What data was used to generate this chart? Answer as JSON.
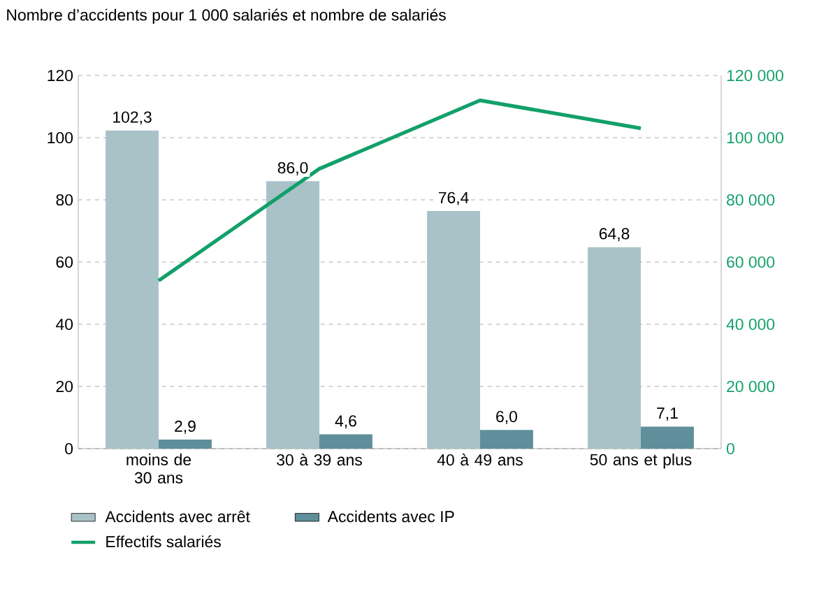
{
  "chart_data": {
    "type": "bar",
    "title": "Nombre d’accidents pour 1 000 salariés et nombre de salariés",
    "categories": [
      "moins de 30 ans",
      "30 à 39 ans",
      "40 à 49 ans",
      "50 ans et plus"
    ],
    "series": [
      {
        "name": "Accidents avec arrêt",
        "color": "#a8c2c8",
        "values": [
          102.3,
          86.0,
          76.4,
          64.8
        ],
        "value_labels": [
          "102,3",
          "86,0",
          "76,4",
          "64,8"
        ]
      },
      {
        "name": "Accidents avec IP",
        "color": "#5f8f9a",
        "values": [
          2.9,
          4.6,
          6.0,
          7.1
        ],
        "value_labels": [
          "2,9",
          "4,6",
          "6,0",
          "7,1"
        ]
      },
      {
        "name": "Effectifs salariés",
        "type": "line",
        "axis": "y2",
        "color": "#12a06a",
        "values": [
          54000,
          90000,
          112000,
          103000
        ]
      }
    ],
    "ylim": [
      0,
      120
    ],
    "yticks": [
      0,
      20,
      40,
      60,
      80,
      100,
      120
    ],
    "y2lim": [
      0,
      120000
    ],
    "y2ticks": [
      {
        "value": 0,
        "label": "0"
      },
      {
        "value": 20000,
        "label": "20 000"
      },
      {
        "value": 40000,
        "label": "40 000"
      },
      {
        "value": 60000,
        "label": "60 000"
      },
      {
        "value": 80000,
        "label": "80 000"
      },
      {
        "value": 100000,
        "label": "100 000"
      },
      {
        "value": 120000,
        "label": "120 000"
      }
    ],
    "grid": "y",
    "legend": "bottom",
    "marker": "none",
    "line_style": "solid"
  }
}
